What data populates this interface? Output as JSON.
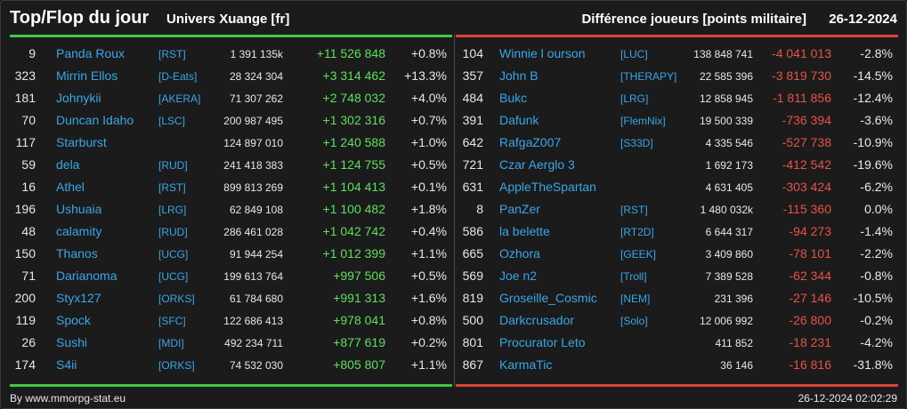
{
  "header": {
    "title": "Top/Flop du jour",
    "universe": "Univers Xuange [fr]",
    "metric": "Différence joueurs [points militaire]",
    "date": "26-12-2024"
  },
  "colors": {
    "top_bar": "#3ec93e",
    "flop_bar": "#d9433b",
    "name": "#3aa6e8",
    "positive": "#5de05d",
    "negative": "#e8524a"
  },
  "top": [
    {
      "rank": "9",
      "name": "Panda Roux",
      "tag": "[RST]",
      "points": "1 391 135k",
      "diff": "+11 526 848",
      "pct": "+0.8%"
    },
    {
      "rank": "323",
      "name": "Mirrin Ellos",
      "tag": "[D-Eats]",
      "points": "28 324 304",
      "diff": "+3 314 462",
      "pct": "+13.3%"
    },
    {
      "rank": "181",
      "name": "Johnykii",
      "tag": "[AKERA]",
      "points": "71 307 262",
      "diff": "+2 748 032",
      "pct": "+4.0%"
    },
    {
      "rank": "70",
      "name": "Duncan Idaho",
      "tag": "[LSC]",
      "points": "200 987 495",
      "diff": "+1 302 316",
      "pct": "+0.7%"
    },
    {
      "rank": "117",
      "name": "Starburst",
      "tag": "",
      "points": "124 897 010",
      "diff": "+1 240 588",
      "pct": "+1.0%"
    },
    {
      "rank": "59",
      "name": "dela",
      "tag": "[RUD]",
      "points": "241 418 383",
      "diff": "+1 124 755",
      "pct": "+0.5%"
    },
    {
      "rank": "16",
      "name": "Athel",
      "tag": "[RST]",
      "points": "899 813 269",
      "diff": "+1 104 413",
      "pct": "+0.1%"
    },
    {
      "rank": "196",
      "name": "Ushuaia",
      "tag": "[LRG]",
      "points": "62 849 108",
      "diff": "+1 100 482",
      "pct": "+1.8%"
    },
    {
      "rank": "48",
      "name": "calamity",
      "tag": "[RUD]",
      "points": "286 461 028",
      "diff": "+1 042 742",
      "pct": "+0.4%"
    },
    {
      "rank": "150",
      "name": "Thanos",
      "tag": "[UCG]",
      "points": "91 944 254",
      "diff": "+1 012 399",
      "pct": "+1.1%"
    },
    {
      "rank": "71",
      "name": "Darianoma",
      "tag": "[UCG]",
      "points": "199 613 764",
      "diff": "+997 506",
      "pct": "+0.5%"
    },
    {
      "rank": "200",
      "name": "Styx127",
      "tag": "[ORKS]",
      "points": "61 784 680",
      "diff": "+991 313",
      "pct": "+1.6%"
    },
    {
      "rank": "119",
      "name": "Spock",
      "tag": "[SFC]",
      "points": "122 686 413",
      "diff": "+978 041",
      "pct": "+0.8%"
    },
    {
      "rank": "26",
      "name": "Sushi",
      "tag": "[MDI]",
      "points": "492 234 711",
      "diff": "+877 619",
      "pct": "+0.2%"
    },
    {
      "rank": "174",
      "name": "S4ii",
      "tag": "[ORKS]",
      "points": "74 532 030",
      "diff": "+805 807",
      "pct": "+1.1%"
    }
  ],
  "flop": [
    {
      "rank": "104",
      "name": "Winnie l ourson",
      "tag": "[LUC]",
      "points": "138 848 741",
      "diff": "-4 041 013",
      "pct": "-2.8%"
    },
    {
      "rank": "357",
      "name": "John B",
      "tag": "[THERAPY]",
      "points": "22 585 396",
      "diff": "-3 819 730",
      "pct": "-14.5%"
    },
    {
      "rank": "484",
      "name": "Bukc",
      "tag": "[LRG]",
      "points": "12 858 945",
      "diff": "-1 811 856",
      "pct": "-12.4%"
    },
    {
      "rank": "391",
      "name": "Dafunk",
      "tag": "[FlemNix]",
      "points": "19 500 339",
      "diff": "-736 394",
      "pct": "-3.6%"
    },
    {
      "rank": "642",
      "name": "RafgaZ007",
      "tag": "[S33D]",
      "points": "4 335 546",
      "diff": "-527 738",
      "pct": "-10.9%"
    },
    {
      "rank": "721",
      "name": "Czar Aerglo 3",
      "tag": "",
      "points": "1 692 173",
      "diff": "-412 542",
      "pct": "-19.6%"
    },
    {
      "rank": "631",
      "name": "AppleTheSpartan",
      "tag": "",
      "points": "4 631 405",
      "diff": "-303 424",
      "pct": "-6.2%"
    },
    {
      "rank": "8",
      "name": "PanZer",
      "tag": "[RST]",
      "points": "1 480 032k",
      "diff": "-115 360",
      "pct": "0.0%"
    },
    {
      "rank": "586",
      "name": "la belette",
      "tag": "[RT2D]",
      "points": "6 644 317",
      "diff": "-94 273",
      "pct": "-1.4%"
    },
    {
      "rank": "665",
      "name": "Ozhora",
      "tag": "[GEEK]",
      "points": "3 409 860",
      "diff": "-78 101",
      "pct": "-2.2%"
    },
    {
      "rank": "569",
      "name": "Joe n2",
      "tag": "[Troll]",
      "points": "7 389 528",
      "diff": "-62 344",
      "pct": "-0.8%"
    },
    {
      "rank": "819",
      "name": "Groseille_Cosmic",
      "tag": "[NEM]",
      "points": "231 396",
      "diff": "-27 146",
      "pct": "-10.5%"
    },
    {
      "rank": "500",
      "name": "Darkcrusador",
      "tag": "[Solo]",
      "points": "12 006 992",
      "diff": "-26 800",
      "pct": "-0.2%"
    },
    {
      "rank": "801",
      "name": "Procurator Leto",
      "tag": "",
      "points": "411 852",
      "diff": "-18 231",
      "pct": "-4.2%"
    },
    {
      "rank": "867",
      "name": "KarmaTic",
      "tag": "",
      "points": "36 146",
      "diff": "-16 816",
      "pct": "-31.8%"
    }
  ],
  "footer": {
    "credit": "By www.mmorpg-stat.eu",
    "timestamp": "26-12-2024 02:02:29"
  }
}
